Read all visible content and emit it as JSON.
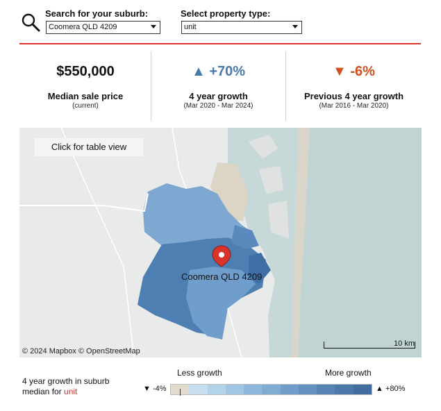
{
  "search": {
    "suburb_label": "Search for your suburb:",
    "suburb_value": "Coomera QLD 4209",
    "type_label": "Select property type:",
    "type_value": "unit"
  },
  "stats": [
    {
      "value": "$550,000",
      "label": "Median sale price",
      "sub": "(current)",
      "color": "#111111"
    },
    {
      "value": "▲ +70%",
      "label": "4 year growth",
      "sub": "(Mar 2020 - Mar 2024)",
      "color": "#4a78a8"
    },
    {
      "value": "▼ -6%",
      "label": "Previous 4 year growth",
      "sub": "(Mar 2016 - Mar 2020)",
      "color": "#d0501f"
    }
  ],
  "map": {
    "table_view_button": "Click for table view",
    "place_label": "Coomera QLD 4209",
    "attribution": "© 2024 Mapbox © OpenStreetMap",
    "scale_label": "10 km"
  },
  "legend": {
    "caption_prefix": "4 year growth in suburb",
    "caption_line2_prefix": "median for ",
    "caption_type": "unit",
    "less": "Less growth",
    "more": "More growth",
    "min": "▼ -4%",
    "max": "▲ +80%",
    "colors": [
      "#e3ddd0",
      "#c7dff0",
      "#b2d3ea",
      "#a0c6e3",
      "#8fb8dc",
      "#80abd3",
      "#719dca",
      "#6391c0",
      "#5684b5",
      "#4b79aa",
      "#416e9f"
    ]
  },
  "colors": {
    "accent_red": "#d9342b",
    "growth_blue": "#4a78a8",
    "decline_orange": "#d0501f"
  }
}
